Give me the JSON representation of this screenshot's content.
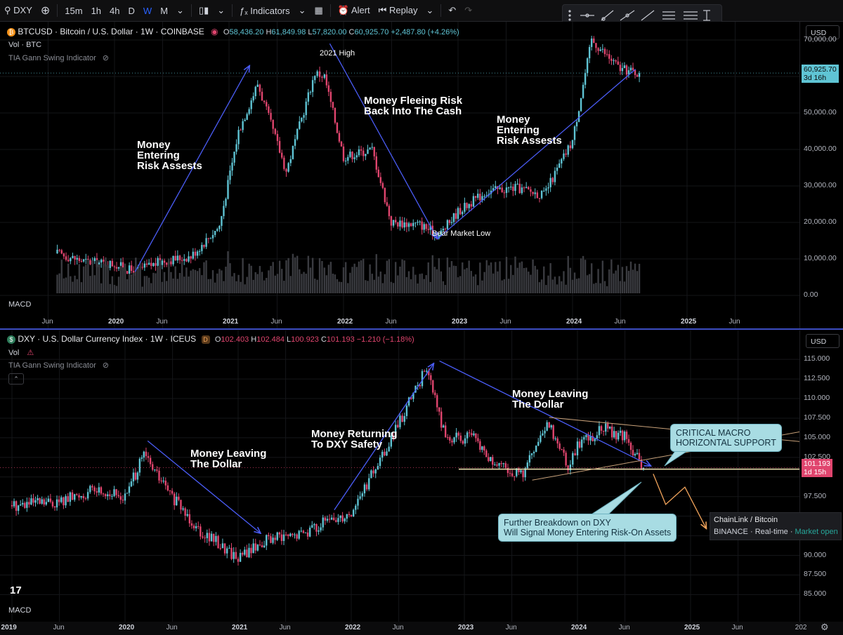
{
  "toolbar": {
    "symbol": "DXY",
    "intervals": [
      "15m",
      "1h",
      "4h",
      "D",
      "W",
      "M"
    ],
    "active_interval": "W",
    "indicators_label": "Indicators",
    "alert_label": "Alert",
    "replay_label": "Replay"
  },
  "colors": {
    "up": "#5fc4d4",
    "down": "#e0456e",
    "trend": "#4a5cf5",
    "wedge": "#c9a27a",
    "support": "#f3e6b3",
    "last_btc": "#5fc4d4",
    "last_dxy": "#e0456e"
  },
  "top": {
    "title": "BTCUSD · Bitcoin / U.S. Dollar · 1W · COINBASE",
    "ohlc": {
      "o": "58,436.20",
      "h": "61,849.98",
      "l": "57,820.00",
      "c": "60,925.70",
      "chg": "+2,487.80 (+4.26%)"
    },
    "vol": "Vol · BTC",
    "indicator": "TIA Gann Swing Indicator",
    "macd": "MACD",
    "currency": "USD",
    "last_price": "60,925.70",
    "countdown": "3d 16h",
    "annotations": {
      "entering1": "Money\nEntering\nRisk Assests",
      "high": "2021 High",
      "fleeing": "Money Fleeing Risk\nBack Into The Cash",
      "entering2": "Money\nEntering\nRisk Assests",
      "low": "Bear Market Low"
    },
    "y_ticks": [
      "70,000.00",
      "60,000.00",
      "50,000.00",
      "40,000.00",
      "30,000.00",
      "20,000.00",
      "10,000.00",
      "0.00"
    ],
    "x_ticks": [
      "Jun",
      "2020",
      "Jun",
      "2021",
      "Jun",
      "2022",
      "Jun",
      "2023",
      "Jun",
      "2024",
      "Jun",
      "2025",
      "Jun"
    ]
  },
  "bottom": {
    "title": "DXY · U.S. Dollar Currency Index · 1W · ICEUS",
    "ohlc": {
      "o": "102.403",
      "h": "102.484",
      "l": "100.923",
      "c": "101.193",
      "chg": "−1.210 (−1.18%)"
    },
    "vol": "Vol",
    "indicator": "TIA Gann Swing Indicator",
    "macd": "MACD",
    "currency": "USD",
    "last_price": "101.193",
    "countdown": "1d 15h",
    "annotations": {
      "leaving1": "Money Leaving\nThe Dollar",
      "returning": "Money Returning\nTo DXY Safety",
      "leaving2": "Money Leaving\nThe Dollar",
      "critical": "CRITICAL MACRO\nHORIZONTAL SUPPORT",
      "breakdown": "Further Breakdown on DXY\nWill Signal Money Entering Risk-On Assets"
    },
    "y_ticks": [
      "115.000",
      "112.500",
      "110.000",
      "107.500",
      "105.000",
      "102.500",
      "97.500",
      "95.000",
      "92.500",
      "90.000",
      "87.500",
      "85.000"
    ],
    "x_ticks": [
      "2019",
      "Jun",
      "2020",
      "Jun",
      "2021",
      "Jun",
      "2022",
      "Jun",
      "2023",
      "Jun",
      "2024",
      "Jun",
      "2025",
      "Jun",
      "202"
    ]
  },
  "tooltip": {
    "pair": "ChainLink / Bitcoin",
    "exchange": "BINANCE",
    "realtime": "Real-time",
    "status": "Market open"
  },
  "chart_data": [
    {
      "type": "candlestick",
      "title": "BTCUSD · Bitcoin / U.S. Dollar · 1W · COINBASE",
      "ylim": [
        0,
        75000
      ],
      "x": [
        "2019-07",
        "2019-10",
        "2020-01",
        "2020-03",
        "2020-06",
        "2020-09",
        "2020-12",
        "2021-02",
        "2021-04",
        "2021-07",
        "2021-10",
        "2021-11",
        "2022-01",
        "2022-04",
        "2022-06",
        "2022-09",
        "2022-11",
        "2023-01",
        "2023-04",
        "2023-07",
        "2023-10",
        "2024-01",
        "2024-03",
        "2024-06",
        "2024-08"
      ],
      "close": [
        11500,
        9200,
        8600,
        6500,
        9400,
        10700,
        19000,
        45000,
        58000,
        34000,
        61000,
        60000,
        38000,
        40000,
        20000,
        19500,
        16500,
        23000,
        28500,
        29500,
        27500,
        42500,
        70000,
        62000,
        60925.7
      ]
    },
    {
      "type": "candlestick",
      "title": "DXY · U.S. Dollar Currency Index · 1W · ICEUS",
      "ylim": [
        84.5,
        116
      ],
      "x": [
        "2019-01",
        "2019-06",
        "2019-10",
        "2020-01",
        "2020-03",
        "2020-06",
        "2020-09",
        "2021-01",
        "2021-04",
        "2021-07",
        "2021-10",
        "2022-01",
        "2022-05",
        "2022-09",
        "2022-11",
        "2023-02",
        "2023-04",
        "2023-07",
        "2023-10",
        "2023-12",
        "2024-01",
        "2024-04",
        "2024-06",
        "2024-08"
      ],
      "close": [
        96.4,
        96.8,
        98.4,
        97.4,
        102.8,
        97.4,
        93.2,
        89.7,
        92.0,
        92.4,
        94.1,
        95.5,
        104.2,
        114.0,
        105.0,
        105.0,
        101.6,
        100.2,
        106.8,
        101.5,
        104.2,
        106.2,
        105.0,
        101.193
      ]
    }
  ]
}
